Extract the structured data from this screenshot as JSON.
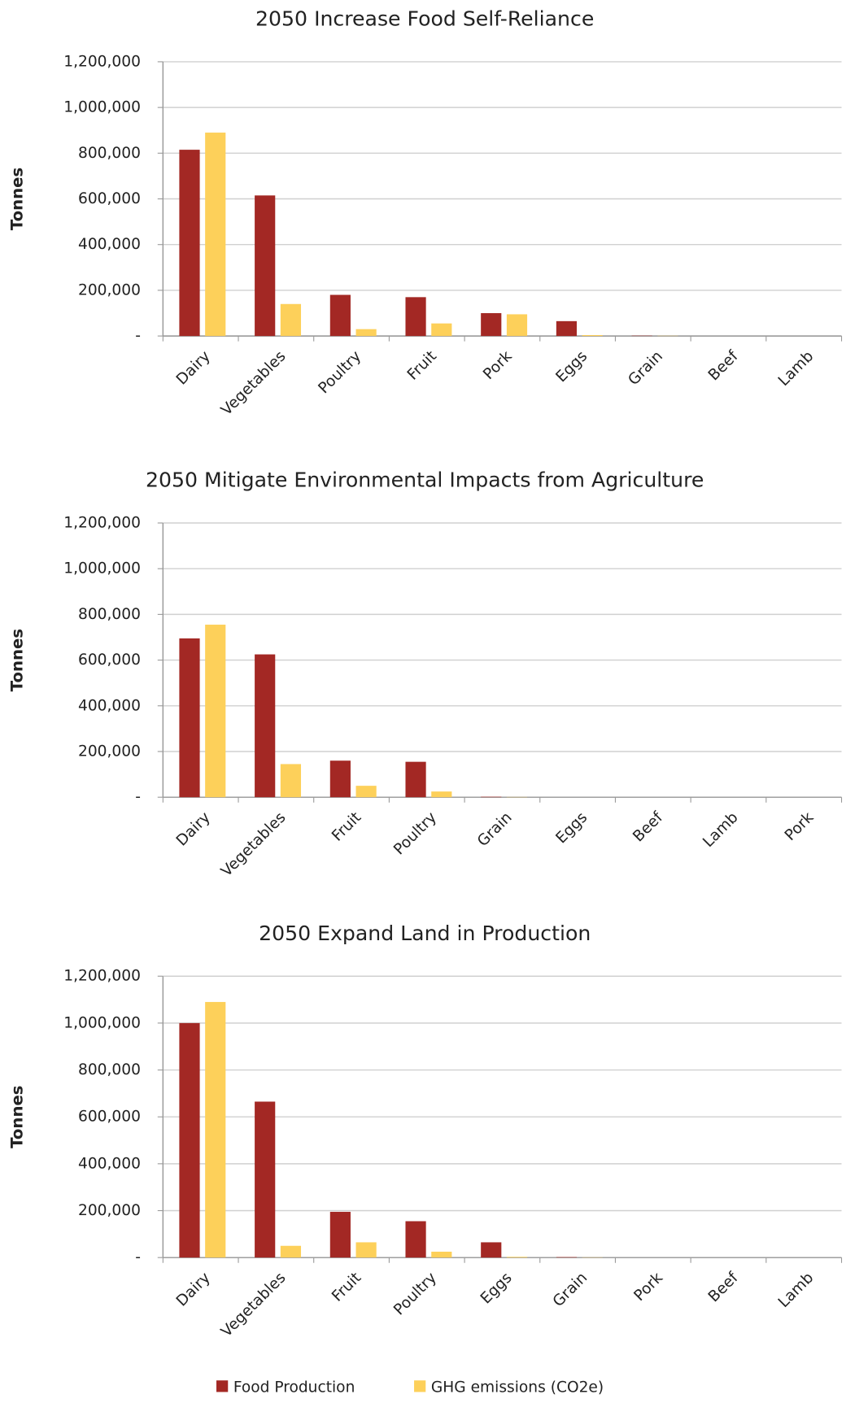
{
  "chart_data": [
    {
      "type": "bar",
      "title": "2050 Increase Food Self-Reliance",
      "y_label": "Tonnes",
      "categories": [
        "Dairy",
        "Vegetables",
        "Poultry",
        "Fruit",
        "Pork",
        "Eggs",
        "Grain",
        "Beef",
        "Lamb"
      ],
      "series": [
        {
          "name": "Food Production",
          "color": "#a32824",
          "values": [
            815000,
            615000,
            180000,
            170000,
            100000,
            65000,
            1500,
            0,
            0
          ]
        },
        {
          "name": "GHG emissions (CO2e)",
          "color": "#fdd05a",
          "values": [
            890000,
            140000,
            30000,
            55000,
            95000,
            4000,
            1000,
            0,
            0
          ]
        }
      ],
      "ylim": [
        0,
        1200000
      ],
      "yticks": [
        {
          "value": 0,
          "label": "-"
        },
        {
          "value": 200000,
          "label": "200,000"
        },
        {
          "value": 400000,
          "label": "400,000"
        },
        {
          "value": 600000,
          "label": "600,000"
        },
        {
          "value": 800000,
          "label": "800,000"
        },
        {
          "value": 1000000,
          "label": "1,000,000"
        },
        {
          "value": 1200000,
          "label": "1,200,000"
        }
      ],
      "grid": true
    },
    {
      "type": "bar",
      "title": "2050 Mitigate Environmental Impacts from Agriculture",
      "y_label": "Tonnes",
      "categories": [
        "Dairy",
        "Vegetables",
        "Fruit",
        "Poultry",
        "Grain",
        "Eggs",
        "Beef",
        "Lamb",
        "Pork"
      ],
      "series": [
        {
          "name": "Food Production",
          "color": "#a32824",
          "values": [
            695000,
            625000,
            160000,
            155000,
            2000,
            0,
            0,
            0,
            0
          ]
        },
        {
          "name": "GHG emissions (CO2e)",
          "color": "#fdd05a",
          "values": [
            755000,
            145000,
            50000,
            25000,
            1000,
            0,
            0,
            0,
            0
          ]
        }
      ],
      "ylim": [
        0,
        1200000
      ],
      "yticks": [
        {
          "value": 0,
          "label": "-"
        },
        {
          "value": 200000,
          "label": "200,000"
        },
        {
          "value": 400000,
          "label": "400,000"
        },
        {
          "value": 600000,
          "label": "600,000"
        },
        {
          "value": 800000,
          "label": "800,000"
        },
        {
          "value": 1000000,
          "label": "1,000,000"
        },
        {
          "value": 1200000,
          "label": "1,200,000"
        }
      ],
      "grid": true
    },
    {
      "type": "bar",
      "title": "2050 Expand Land in Production",
      "y_label": "Tonnes",
      "categories": [
        "Dairy",
        "Vegetables",
        "Fruit",
        "Poultry",
        "Eggs",
        "Grain",
        "Pork",
        "Beef",
        "Lamb"
      ],
      "series": [
        {
          "name": "Food Production",
          "color": "#a32824",
          "values": [
            1000000,
            665000,
            195000,
            155000,
            65000,
            2000,
            0,
            0,
            0
          ]
        },
        {
          "name": "GHG emissions (CO2e)",
          "color": "#fdd05a",
          "values": [
            1090000,
            50000,
            65000,
            25000,
            3000,
            1000,
            0,
            0,
            0
          ]
        }
      ],
      "ylim": [
        0,
        1200000
      ],
      "yticks": [
        {
          "value": 0,
          "label": "-"
        },
        {
          "value": 200000,
          "label": "200,000"
        },
        {
          "value": 400000,
          "label": "400,000"
        },
        {
          "value": 600000,
          "label": "600,000"
        },
        {
          "value": 800000,
          "label": "800,000"
        },
        {
          "value": 1000000,
          "label": "1,000,000"
        },
        {
          "value": 1200000,
          "label": "1,200,000"
        }
      ],
      "grid": true
    }
  ]
}
